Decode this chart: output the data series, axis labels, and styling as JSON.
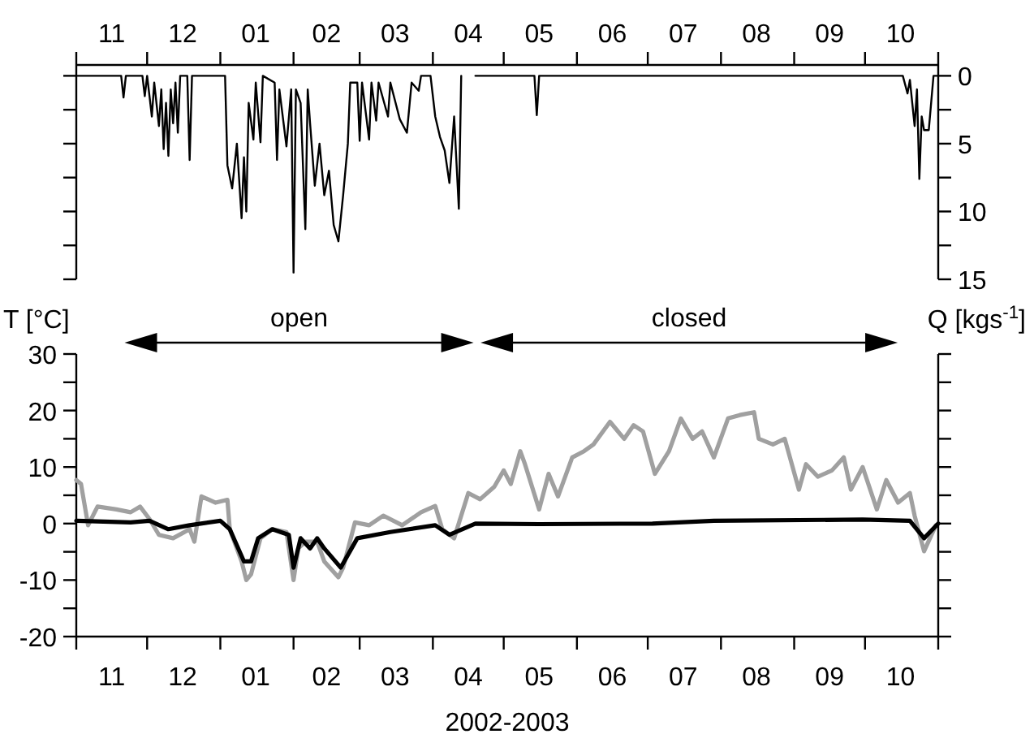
{
  "chart_data": [
    {
      "type": "line",
      "ylabel": "Q [kgs$^{-1}$]",
      "xlim": [
        "2002-11-01",
        "2003-11-01"
      ],
      "ylim": [
        15,
        -0.8
      ],
      "xticks": [
        {
          "value": "2002-11-01",
          "label": null
        },
        {
          "value": "2002-11-16",
          "label": "11"
        },
        {
          "value": "2002-12-01",
          "label": null
        },
        {
          "value": "2002-12-16",
          "label": "12"
        },
        {
          "value": "2003-01-01",
          "label": null
        },
        {
          "value": "2003-01-16",
          "label": "01"
        },
        {
          "value": "2003-02-01",
          "label": null
        },
        {
          "value": "2003-02-15",
          "label": "02"
        },
        {
          "value": "2003-03-01",
          "label": null
        },
        {
          "value": "2003-03-16",
          "label": "03"
        },
        {
          "value": "2003-04-01",
          "label": null
        },
        {
          "value": "2003-04-16",
          "label": "04"
        },
        {
          "value": "2003-05-01",
          "label": null
        },
        {
          "value": "2003-05-16",
          "label": "05"
        },
        {
          "value": "2003-06-01",
          "label": null
        },
        {
          "value": "2003-06-16",
          "label": "06"
        },
        {
          "value": "2003-07-01",
          "label": null
        },
        {
          "value": "2003-07-16",
          "label": "07"
        },
        {
          "value": "2003-08-01",
          "label": null
        },
        {
          "value": "2003-08-16",
          "label": "08"
        },
        {
          "value": "2003-09-01",
          "label": null
        },
        {
          "value": "2003-09-16",
          "label": "09"
        },
        {
          "value": "2003-10-01",
          "label": null
        },
        {
          "value": "2003-10-16",
          "label": "10"
        },
        {
          "value": "2003-11-01",
          "label": null
        }
      ],
      "yticks": [
        0,
        {
          "value": 2.5,
          "label": null
        },
        5,
        {
          "value": 7.5,
          "label": null
        },
        10,
        {
          "value": 12.5,
          "label": null
        },
        15
      ],
      "series": [
        {
          "color": "#000000",
          "x": [
            "2002-11-01",
            "2002-11-20",
            "2002-11-21",
            "2002-11-22",
            "2002-11-29",
            "2002-11-30",
            "2002-12-01",
            "2002-12-03",
            "2002-12-04",
            "2002-12-06",
            "2002-12-07",
            "2002-12-08",
            "2002-12-09",
            "2002-12-10",
            "2002-12-11",
            "2002-12-12",
            "2002-12-13",
            "2002-12-14",
            "2002-12-15",
            "2002-12-18",
            "2002-12-19",
            "2002-12-20",
            "2003-01-03",
            "2003-01-04",
            "2003-01-06",
            "2003-01-08",
            "2003-01-10",
            "2003-01-11",
            "2003-01-12",
            "2003-01-13",
            "2003-01-15",
            "2003-01-16",
            "2003-01-18",
            "2003-01-19",
            "2003-01-24",
            "2003-01-25",
            "2003-01-26",
            "2003-01-29",
            "2003-01-31",
            "2003-02-01",
            "2003-02-02",
            "2003-02-04",
            "2003-02-06",
            "2003-02-07",
            "2003-02-08",
            "2003-02-10",
            "2003-02-12",
            "2003-02-14",
            "2003-02-16",
            "2003-02-18",
            "2003-02-20",
            "2003-02-22",
            "2003-02-24",
            "2003-02-25",
            "2003-02-28",
            "2003-03-01",
            "2003-03-02",
            "2003-03-05",
            "2003-03-06",
            "2003-03-08",
            "2003-03-09",
            "2003-03-13",
            "2003-03-14",
            "2003-03-18",
            "2003-03-21",
            "2003-03-23",
            "2003-03-26",
            "2003-03-27",
            "2003-03-31",
            "2003-04-02",
            "2003-04-04",
            "2003-04-06",
            "2003-04-08",
            "2003-04-10",
            "2003-04-12",
            "2003-04-13",
            "2003-04-14",
            "2003-04-19",
            "2003-05-14",
            "2003-05-15",
            "2003-05-16",
            "2003-10-17",
            "2003-10-19",
            "2003-10-20",
            "2003-10-21",
            "2003-10-22",
            "2003-10-23",
            "2003-10-24",
            "2003-10-25",
            "2003-10-26",
            "2003-10-28",
            "2003-10-30",
            "2003-11-01"
          ],
          "values": [
            0,
            0,
            1.6,
            0,
            0,
            1.5,
            0,
            3,
            0.5,
            3.7,
            1,
            5.4,
            2,
            5.9,
            1,
            3.5,
            0.5,
            4.2,
            0,
            0,
            6.2,
            0,
            0,
            6.6,
            8.3,
            5,
            10.5,
            6,
            10,
            2,
            4.7,
            0.5,
            4.9,
            0,
            0.5,
            6.2,
            1,
            5.2,
            1,
            14.5,
            1,
            2,
            11.3,
            1,
            3.5,
            8.1,
            5,
            8.8,
            7,
            11,
            12.2,
            8.8,
            5,
            0.5,
            0.5,
            4.8,
            0.5,
            4.7,
            0.5,
            3.3,
            0.5,
            3,
            0.5,
            3.2,
            4.2,
            0.5,
            1.1,
            0,
            0,
            3,
            4.5,
            5.5,
            7.9,
            3,
            9.8,
            0,
            null,
            0,
            0,
            2.9,
            0,
            0,
            1.3,
            0.3,
            2,
            3.7,
            1,
            7.6,
            3,
            4,
            4,
            0,
            0
          ]
        }
      ]
    },
    {
      "type": "line",
      "ylabel": "T [°C]",
      "xlabel": "2002-2003",
      "xlim": [
        "2002-11-01",
        "2003-11-01"
      ],
      "ylim": [
        -20,
        30
      ],
      "xticks": [
        {
          "value": "2002-11-01",
          "label": null
        },
        {
          "value": "2002-11-16",
          "label": "11"
        },
        {
          "value": "2002-12-01",
          "label": null
        },
        {
          "value": "2002-12-16",
          "label": "12"
        },
        {
          "value": "2003-01-01",
          "label": null
        },
        {
          "value": "2003-01-16",
          "label": "01"
        },
        {
          "value": "2003-02-01",
          "label": null
        },
        {
          "value": "2003-02-15",
          "label": "02"
        },
        {
          "value": "2003-03-01",
          "label": null
        },
        {
          "value": "2003-03-16",
          "label": "03"
        },
        {
          "value": "2003-04-01",
          "label": null
        },
        {
          "value": "2003-04-16",
          "label": "04"
        },
        {
          "value": "2003-05-01",
          "label": null
        },
        {
          "value": "2003-05-16",
          "label": "05"
        },
        {
          "value": "2003-06-01",
          "label": null
        },
        {
          "value": "2003-06-16",
          "label": "06"
        },
        {
          "value": "2003-07-01",
          "label": null
        },
        {
          "value": "2003-07-16",
          "label": "07"
        },
        {
          "value": "2003-08-01",
          "label": null
        },
        {
          "value": "2003-08-16",
          "label": "08"
        },
        {
          "value": "2003-09-01",
          "label": null
        },
        {
          "value": "2003-09-16",
          "label": "09"
        },
        {
          "value": "2003-10-01",
          "label": null
        },
        {
          "value": "2003-10-16",
          "label": "10"
        },
        {
          "value": "2003-11-01",
          "label": null
        }
      ],
      "yticks": [
        -20,
        {
          "value": -15,
          "label": null
        },
        -10,
        {
          "value": -5,
          "label": null
        },
        0,
        {
          "value": 5,
          "label": null
        },
        10,
        {
          "value": 15,
          "label": null
        },
        20,
        {
          "value": 25,
          "label": null
        },
        30
      ],
      "annotations": [
        "open",
        "closed"
      ],
      "series": [
        {
          "color": "#a0a0a0",
          "x": [
            "2002-11-01",
            "2002-11-03",
            "2002-11-06",
            "2002-11-10",
            "2002-11-18",
            "2002-11-24",
            "2002-11-28",
            "2002-12-02",
            "2002-12-06",
            "2002-12-12",
            "2002-12-19",
            "2002-12-21",
            "2002-12-24",
            "2002-12-30",
            "2003-01-04",
            "2003-01-05",
            "2003-01-10",
            "2003-01-12",
            "2003-01-14",
            "2003-01-18",
            "2003-01-23",
            "2003-01-29",
            "2003-02-01",
            "2003-02-03",
            "2003-02-06",
            "2003-02-11",
            "2003-02-14",
            "2003-02-20",
            "2003-02-22",
            "2003-02-27",
            "2003-03-05",
            "2003-03-11",
            "2003-03-19",
            "2003-03-27",
            "2003-04-02",
            "2003-04-05",
            "2003-04-10",
            "2003-04-16",
            "2003-04-21",
            "2003-04-27",
            "2003-05-01",
            "2003-05-04",
            "2003-05-08",
            "2003-05-10",
            "2003-05-16",
            "2003-05-20",
            "2003-05-24",
            "2003-05-30",
            "2003-06-04",
            "2003-06-08",
            "2003-06-15",
            "2003-06-21",
            "2003-06-25",
            "2003-06-29",
            "2003-07-04",
            "2003-07-10",
            "2003-07-15",
            "2003-07-20",
            "2003-07-24",
            "2003-07-29",
            "2003-08-04",
            "2003-08-09",
            "2003-08-15",
            "2003-08-17",
            "2003-08-23",
            "2003-08-28",
            "2003-09-03",
            "2003-09-06",
            "2003-09-11",
            "2003-09-17",
            "2003-09-22",
            "2003-09-25",
            "2003-09-30",
            "2003-10-06",
            "2003-10-10",
            "2003-10-15",
            "2003-10-20",
            "2003-10-22",
            "2003-10-26",
            "2003-10-31"
          ],
          "values": [
            7.7,
            7,
            -0.3,
            3,
            2.5,
            2,
            3,
            0.8,
            -2,
            -2.6,
            -1,
            -3.2,
            4.8,
            3.7,
            4.2,
            -1,
            -6.7,
            -10,
            -9,
            -2.6,
            -1,
            -1.5,
            -10,
            -4.4,
            -3.2,
            -3.2,
            -6.7,
            -9.5,
            -7.8,
            0.2,
            -0.3,
            1.4,
            -0.3,
            2,
            3.1,
            -1,
            -2.6,
            5.4,
            4.3,
            6.5,
            9.4,
            7,
            12.8,
            10.5,
            2.5,
            8.8,
            4.8,
            11.7,
            12.8,
            14,
            18,
            15,
            17.4,
            16.3,
            8.8,
            12.8,
            18.6,
            15,
            16.3,
            11.7,
            18.6,
            19.2,
            19.7,
            15,
            14,
            15,
            6,
            10.5,
            8.3,
            9.4,
            11.7,
            6,
            10,
            2.5,
            7.7,
            3.7,
            5.4,
            1.4,
            -4.9,
            -0.3
          ]
        },
        {
          "color": "#000000",
          "x": [
            "2002-11-01",
            "2002-11-24",
            "2002-12-02",
            "2002-12-10",
            "2002-12-19",
            "2003-01-01",
            "2003-01-05",
            "2003-01-11",
            "2003-01-14",
            "2003-01-17",
            "2003-01-23",
            "2003-01-30",
            "2003-02-01",
            "2003-02-04",
            "2003-02-08",
            "2003-02-11",
            "2003-02-14",
            "2003-02-21",
            "2003-02-28",
            "2003-03-14",
            "2003-04-02",
            "2003-04-08",
            "2003-04-19",
            "2003-05-16",
            "2003-07-03",
            "2003-07-29",
            "2003-09-30",
            "2003-10-20",
            "2003-10-26",
            "2003-11-01"
          ],
          "values": [
            0.5,
            0.2,
            0.5,
            -1,
            -0.3,
            0.5,
            -1,
            -6.7,
            -6.7,
            -2.6,
            -1,
            -2,
            -7.8,
            -2.6,
            -4.4,
            -2.6,
            -4.4,
            -7.8,
            -2.6,
            -1.5,
            -0.3,
            -2,
            0,
            -0.1,
            0,
            0.5,
            0.7,
            0.5,
            -2.6,
            0
          ]
        }
      ]
    }
  ]
}
